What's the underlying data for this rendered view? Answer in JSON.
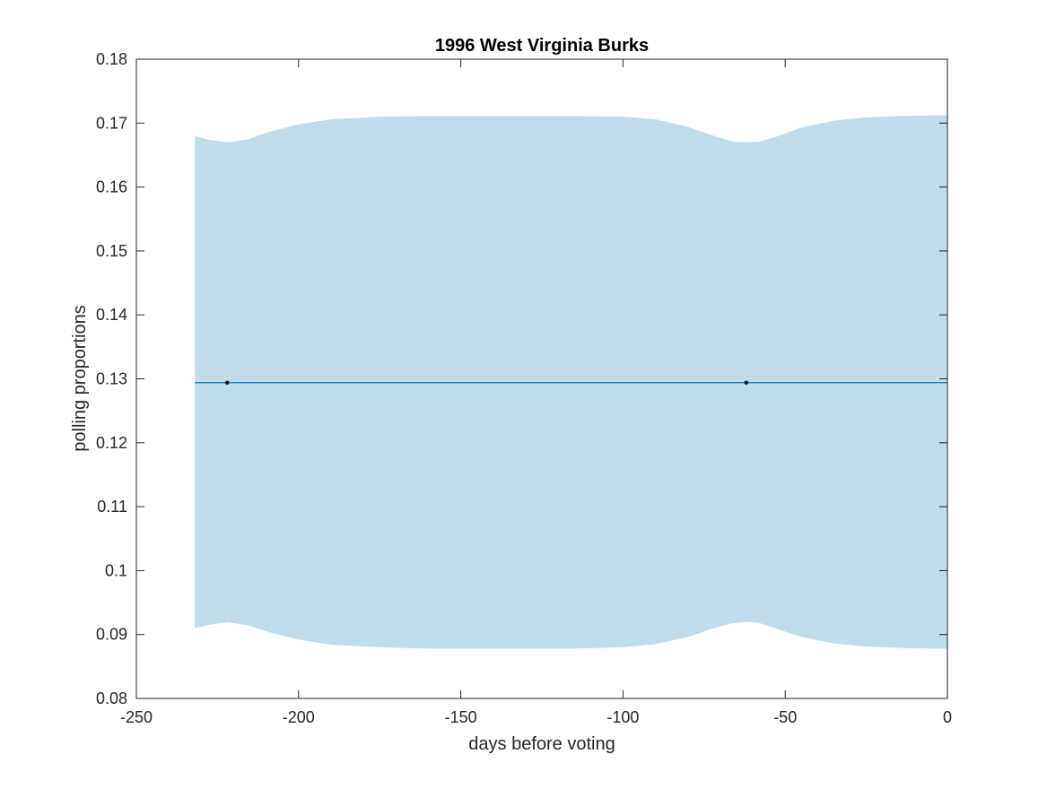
{
  "chart_data": {
    "type": "area",
    "title": "1996 West Virginia Burks",
    "xlabel": "days before voting",
    "ylabel": "polling proportions",
    "xlim": [
      -250,
      0
    ],
    "ylim": [
      0.08,
      0.18
    ],
    "xticks": [
      -250,
      -200,
      -150,
      -100,
      -50,
      0
    ],
    "yticks": [
      0.08,
      0.09,
      0.1,
      0.11,
      0.12,
      0.13,
      0.14,
      0.15,
      0.16,
      0.17,
      0.18
    ],
    "xtick_labels": [
      "-250",
      "-200",
      "-150",
      "-100",
      "-50",
      "0"
    ],
    "ytick_labels": [
      "0.08",
      "0.09",
      "0.1",
      "0.11",
      "0.12",
      "0.13",
      "0.14",
      "0.15",
      "0.16",
      "0.17",
      "0.18"
    ],
    "grid": false,
    "series": [
      {
        "kind": "band",
        "color": "#c0dcea",
        "x": [
          -232,
          -228,
          -222,
          -216,
          -210,
          -200,
          -190,
          -175,
          -160,
          -145,
          -130,
          -115,
          -100,
          -90,
          -80,
          -72,
          -66,
          -62,
          -58,
          -52,
          -45,
          -35,
          -25,
          -15,
          -5,
          0
        ],
        "upper": [
          0.168,
          0.1674,
          0.167,
          0.1674,
          0.1685,
          0.1698,
          0.1706,
          0.171,
          0.1711,
          0.1711,
          0.1711,
          0.1711,
          0.171,
          0.1706,
          0.1694,
          0.168,
          0.1671,
          0.167,
          0.1671,
          0.168,
          0.1693,
          0.1704,
          0.1709,
          0.1711,
          0.1712,
          0.1712
        ],
        "lower": [
          0.091,
          0.0915,
          0.0919,
          0.0915,
          0.0905,
          0.0892,
          0.0884,
          0.088,
          0.0878,
          0.0878,
          0.0878,
          0.0878,
          0.088,
          0.0885,
          0.0896,
          0.091,
          0.0918,
          0.092,
          0.0918,
          0.0908,
          0.0896,
          0.0886,
          0.0881,
          0.0879,
          0.0878,
          0.0878
        ]
      },
      {
        "kind": "line",
        "color": "#0072bd",
        "x": [
          -232,
          0
        ],
        "y": [
          0.1294,
          0.1294
        ]
      },
      {
        "kind": "points",
        "color": "#000000",
        "x": [
          -222,
          -62
        ],
        "y": [
          0.1294,
          0.1294
        ]
      }
    ]
  }
}
